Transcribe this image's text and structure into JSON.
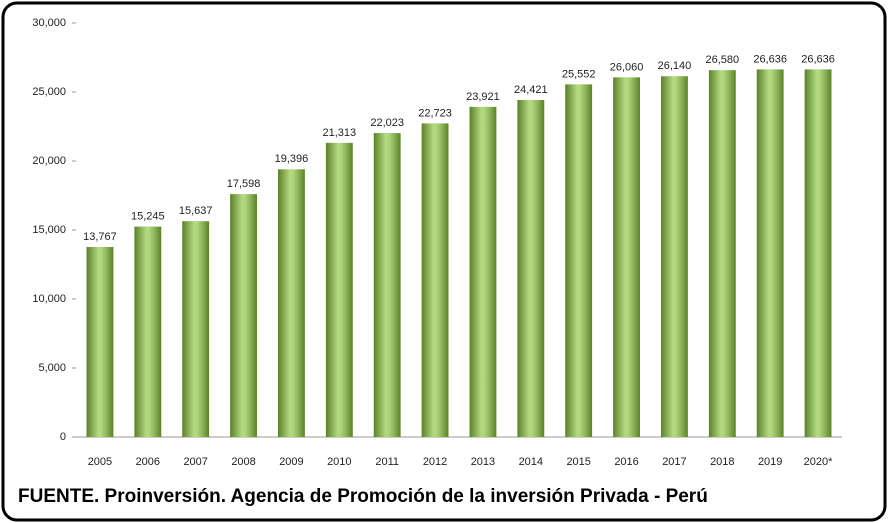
{
  "chart_data": {
    "type": "bar",
    "categories": [
      "2005",
      "2006",
      "2007",
      "2008",
      "2009",
      "2010",
      "2011",
      "2012",
      "2013",
      "2014",
      "2015",
      "2016",
      "2017",
      "2018",
      "2019",
      "2020*"
    ],
    "values": [
      13767,
      15245,
      15637,
      17598,
      19396,
      21313,
      22023,
      22723,
      23921,
      24421,
      25552,
      26060,
      26140,
      26580,
      26636,
      26636
    ],
    "value_labels": [
      "13,767",
      "15,245",
      "15,637",
      "17,598",
      "19,396",
      "21,313",
      "22,023",
      "22,723",
      "23,921",
      "24,421",
      "25,552",
      "26,060",
      "26,140",
      "26,580",
      "26,636",
      "26,636"
    ],
    "color": "#8cc63f",
    "ylim": [
      0,
      30000
    ],
    "yticks": [
      0,
      {
        "value": 5000,
        "label": "5,000"
      },
      {
        "value": 10000,
        "label": "10,000"
      },
      {
        "value": 15000,
        "label": "15,000"
      },
      {
        "value": 20000,
        "label": "20,000"
      },
      {
        "value": 25000,
        "label": "25,000"
      },
      {
        "value": 30000,
        "label": "30,000"
      }
    ],
    "grid": false,
    "source": "FUENTE. Proinversión. Agencia de Promoción de la inversión Privada - Perú"
  }
}
